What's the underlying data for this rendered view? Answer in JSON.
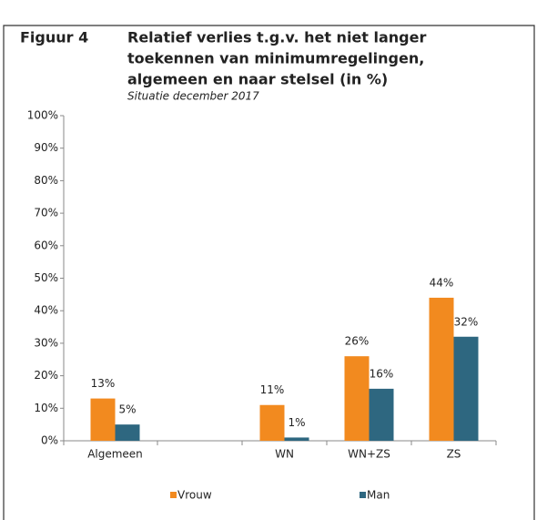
{
  "chart_data": {
    "type": "bar",
    "label": "Figuur 4",
    "title": [
      "Relatief verlies t.g.v. het niet langer",
      "toekennen van minimumregelingen,",
      "algemeen en naar stelsel (in %)"
    ],
    "subtitle": "Situatie december 2017",
    "categories": [
      "Algemeen",
      null,
      "WN",
      "WN+ZS",
      "ZS"
    ],
    "series": [
      {
        "name": "Vrouw",
        "color": "#f28a1f",
        "values": [
          13,
          null,
          11,
          26,
          44
        ],
        "value_labels": [
          "13%",
          null,
          "11%",
          "26%",
          "44%"
        ]
      },
      {
        "name": "Man",
        "color": "#2e6780",
        "values": [
          5,
          null,
          1,
          16,
          32
        ],
        "value_labels": [
          "5%",
          null,
          "1%",
          "16%",
          "32%"
        ]
      }
    ],
    "ylim": [
      0,
      100
    ],
    "yticks": [
      {
        "value": 0,
        "label": "0%"
      },
      {
        "value": 10,
        "label": "10%"
      },
      {
        "value": 20,
        "label": "20%"
      },
      {
        "value": 30,
        "label": "30%"
      },
      {
        "value": 40,
        "label": "40%"
      },
      {
        "value": 50,
        "label": "50%"
      },
      {
        "value": 60,
        "label": "60%"
      },
      {
        "value": 70,
        "label": "70%"
      },
      {
        "value": 80,
        "label": "80%"
      },
      {
        "value": 90,
        "label": "90%"
      },
      {
        "value": 100,
        "label": "100%"
      }
    ],
    "legend": "bottom"
  }
}
